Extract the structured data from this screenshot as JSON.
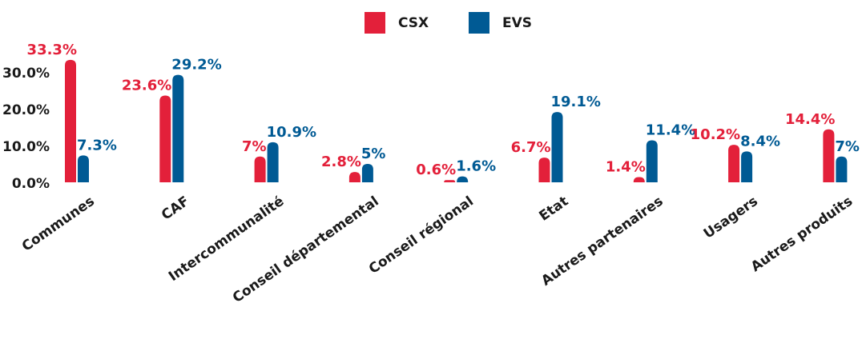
{
  "chart_data": {
    "type": "bar",
    "categories": [
      "Communes",
      "CAF",
      "Intercommunalité",
      "Conseil départemental",
      "Conseil régional",
      "Etat",
      "Autres partenaires",
      "Usagers",
      "Autres produits"
    ],
    "series": [
      {
        "name": "CSX",
        "color": "#e3203a",
        "values": [
          33.3,
          23.6,
          7,
          2.8,
          0.6,
          6.7,
          1.4,
          10.2,
          14.4
        ],
        "value_labels": [
          "33.3%",
          "23.6%",
          "7%",
          "2.8%",
          "0.6%",
          "6.7%",
          "1.4%",
          "10.2%",
          "14.4%"
        ]
      },
      {
        "name": "EVS",
        "color": "#005a94",
        "values": [
          7.3,
          29.2,
          10.9,
          5,
          1.6,
          19.1,
          11.4,
          8.4,
          7
        ],
        "value_labels": [
          "7.3%",
          "29.2%",
          "10.9%",
          "5%",
          "1.6%",
          "19.1%",
          "11.4%",
          "8.4%",
          "7%"
        ]
      }
    ],
    "ylim": [
      0,
      35
    ],
    "yticks": [
      {
        "value": 0,
        "label": "0.0%"
      },
      {
        "value": 10,
        "label": "10.0%"
      },
      {
        "value": 20,
        "label": "20.0%"
      },
      {
        "value": 30,
        "label": "30.0%"
      }
    ],
    "grid": false,
    "legend": "top"
  }
}
